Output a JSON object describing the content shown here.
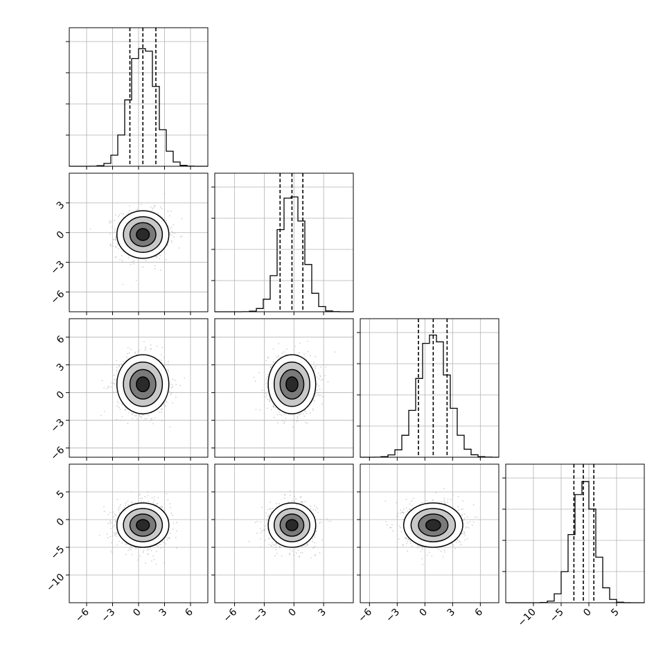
{
  "chart_data": {
    "type": "corner",
    "n_params": 4,
    "grid": true,
    "params": [
      {
        "index": 0,
        "range": [
          -8,
          8
        ],
        "mean": 0.5,
        "sd": 1.5,
        "quantiles": [
          -1.0,
          0.5,
          2.0
        ],
        "hist_bins": [
          -6,
          -5,
          -4,
          -3,
          -2,
          -1,
          0,
          1,
          2,
          3,
          4,
          5,
          6
        ],
        "ticks": [
          -6,
          -3,
          0,
          3,
          6
        ]
      },
      {
        "index": 1,
        "range": [
          -8,
          6
        ],
        "mean": -0.2,
        "sd": 1.2,
        "quantiles": [
          -1.4,
          -0.2,
          0.9
        ],
        "ticks": [
          -6,
          -3,
          0,
          3
        ]
      },
      {
        "index": 2,
        "range": [
          -7,
          8
        ],
        "mean": 0.9,
        "sd": 1.6,
        "quantiles": [
          -0.7,
          0.9,
          2.4
        ],
        "ticks": [
          -6,
          -3,
          0,
          3,
          6
        ]
      },
      {
        "index": 3,
        "range": [
          -15,
          10
        ],
        "mean": -1.0,
        "sd": 2.0,
        "quantiles": [
          -2.7,
          -1.0,
          0.9
        ],
        "ticks": [
          -10,
          -5,
          0,
          5
        ]
      }
    ],
    "tick_labels": {
      "p0": [
        "−6",
        "−3",
        "0",
        "3",
        "6"
      ],
      "p1": [
        "−6",
        "−3",
        "0",
        "3"
      ],
      "p2": [
        "−6",
        "−3",
        "0",
        "3",
        "6"
      ],
      "p3": [
        "−10",
        "−5",
        "0",
        "5"
      ]
    },
    "colors": {
      "line": "#000000",
      "scatter": "#b0b0b0",
      "grid": "#b0b0b0",
      "fill_dark": "#2a2a2a",
      "fill_mid": "#7a7a7a",
      "fill_light": "#c8c8c8"
    }
  }
}
